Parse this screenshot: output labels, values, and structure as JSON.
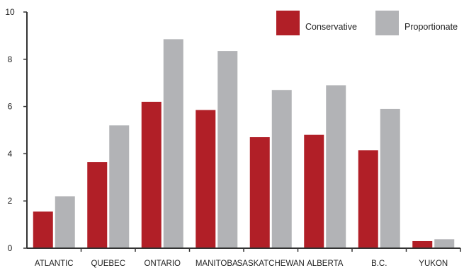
{
  "chart_data": {
    "type": "bar",
    "title": "",
    "xlabel": "",
    "ylabel": "",
    "categories": [
      "ATLANTIC",
      "QUEBEC",
      "ONTARIO",
      "MANITOBA",
      "SASKATCHEWAN",
      "ALBERTA",
      "B.C.",
      "YUKON"
    ],
    "series": [
      {
        "name": "Conservative",
        "color": "#b11f27",
        "values": [
          1.55,
          3.65,
          6.2,
          5.85,
          4.7,
          4.8,
          4.15,
          0.3
        ]
      },
      {
        "name": "Proportionate",
        "color": "#b2b3b6",
        "values": [
          2.2,
          5.2,
          8.85,
          8.35,
          6.7,
          6.9,
          5.9,
          0.38
        ]
      }
    ],
    "ylim": [
      0,
      10
    ],
    "yticks": [
      "0",
      "2",
      "4",
      "6",
      "8",
      "10"
    ],
    "grid": false,
    "legend_position": "top-right"
  }
}
